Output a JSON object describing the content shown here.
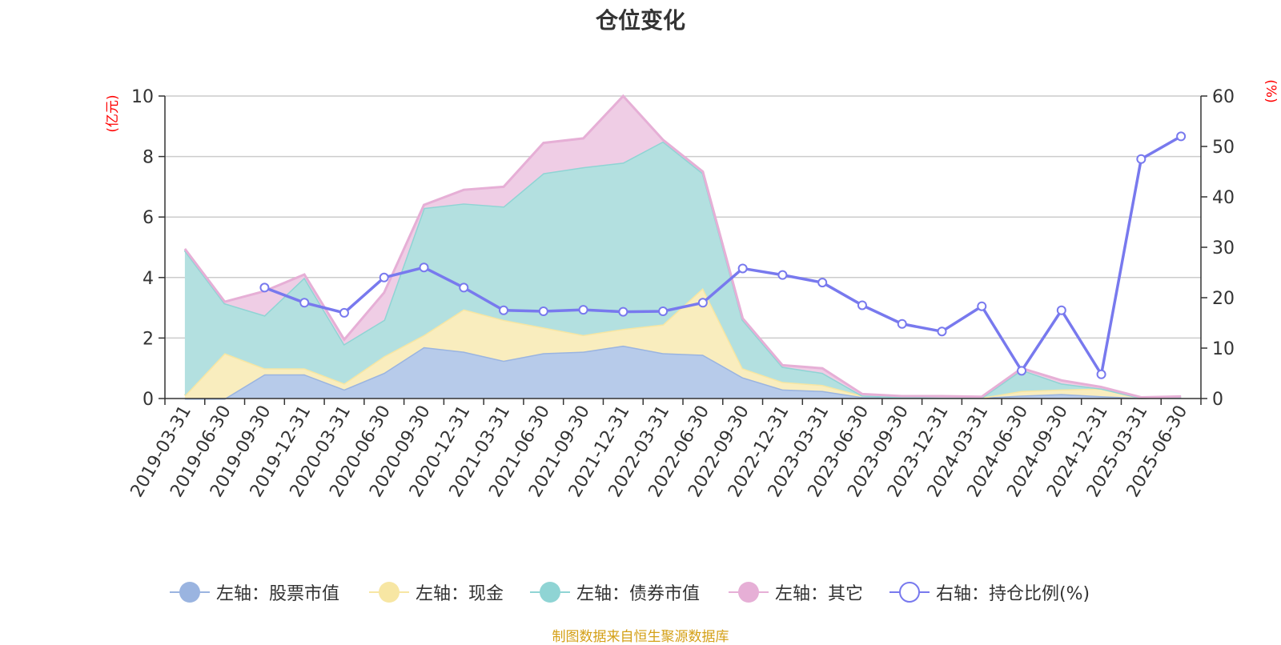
{
  "title": "仓位变化",
  "source_note": "制图数据来自恒生聚源数据库",
  "chart_data": {
    "type": "area",
    "title": "仓位变化",
    "left_axis": {
      "unit_label": "(亿元)",
      "range": [
        0,
        10
      ],
      "ticks": [
        "0",
        "2",
        "4",
        "6",
        "8",
        "10"
      ],
      "color": "#ff0000"
    },
    "right_axis": {
      "unit_label": "(%)",
      "range": [
        0,
        60
      ],
      "ticks": [
        "0",
        "10",
        "20",
        "30",
        "40",
        "50",
        "60"
      ],
      "color": "#ff0000"
    },
    "grid": true,
    "legend_position": "bottom",
    "categories": [
      "2019-03-31",
      "2019-06-30",
      "2019-09-30",
      "2019-12-31",
      "2020-03-31",
      "2020-06-30",
      "2020-09-30",
      "2020-12-31",
      "2021-03-31",
      "2021-06-30",
      "2021-09-30",
      "2021-12-31",
      "2022-03-31",
      "2022-06-30",
      "2022-09-30",
      "2022-12-31",
      "2023-03-31",
      "2023-06-30",
      "2023-09-30",
      "2023-12-31",
      "2024-03-31",
      "2024-06-30",
      "2024-09-30",
      "2024-12-31",
      "2025-03-31",
      "2025-06-30"
    ],
    "series": [
      {
        "name": "左轴：股票市值",
        "axis": "left",
        "stacked": true,
        "color": "#9ab4e0",
        "fill": "#b7cbea",
        "values": [
          0,
          0,
          0.8,
          0.8,
          0.3,
          0.85,
          1.7,
          1.55,
          1.25,
          1.5,
          1.55,
          1.75,
          1.5,
          1.45,
          0.7,
          0.3,
          0.25,
          0.05,
          0.05,
          0.03,
          0.03,
          0.1,
          0.15,
          0.08,
          0.02,
          0.05
        ]
      },
      {
        "name": "左轴：现金",
        "axis": "left",
        "stacked": true,
        "color": "#f7e6a3",
        "fill": "#f9edbe",
        "values": [
          0.1,
          1.5,
          0.2,
          0.2,
          0.2,
          0.55,
          0.4,
          1.4,
          1.35,
          0.85,
          0.55,
          0.55,
          0.95,
          2.2,
          0.3,
          0.25,
          0.2,
          0.05,
          0,
          0,
          0,
          0.15,
          0.15,
          0.25,
          0,
          0
        ]
      },
      {
        "name": "左轴：债券市值",
        "axis": "left",
        "stacked": true,
        "color": "#8fd4d4",
        "fill": "#b3e0e0",
        "values": [
          4.8,
          1.65,
          1.75,
          3.0,
          1.3,
          1.2,
          4.2,
          3.5,
          3.75,
          5.1,
          5.55,
          5.5,
          6.05,
          3.8,
          1.6,
          0.5,
          0.4,
          0,
          0,
          0,
          0,
          0.7,
          0.2,
          0,
          0,
          0
        ]
      },
      {
        "name": "左轴：其它",
        "axis": "left",
        "stacked": true,
        "color": "#e6afd6",
        "fill": "#efcde5",
        "values": [
          0.05,
          0.05,
          0.8,
          0.1,
          0.15,
          0.9,
          0.1,
          0.45,
          0.65,
          1.0,
          0.95,
          2.2,
          0.05,
          0.05,
          0.05,
          0.05,
          0.15,
          0.05,
          0.03,
          0.05,
          0.03,
          0.05,
          0.1,
          0.05,
          0.02,
          0.02
        ]
      },
      {
        "name": "右轴：持仓比例(%)",
        "axis": "right",
        "type": "line",
        "color": "#7879ee",
        "values": [
          null,
          null,
          22,
          19,
          17,
          24,
          26,
          22,
          17.5,
          17.3,
          17.6,
          17.2,
          17.3,
          19,
          25.8,
          24.5,
          23,
          18.5,
          14.8,
          13.3,
          18.3,
          5.5,
          17.5,
          4.8,
          47.5,
          52
        ]
      }
    ]
  }
}
